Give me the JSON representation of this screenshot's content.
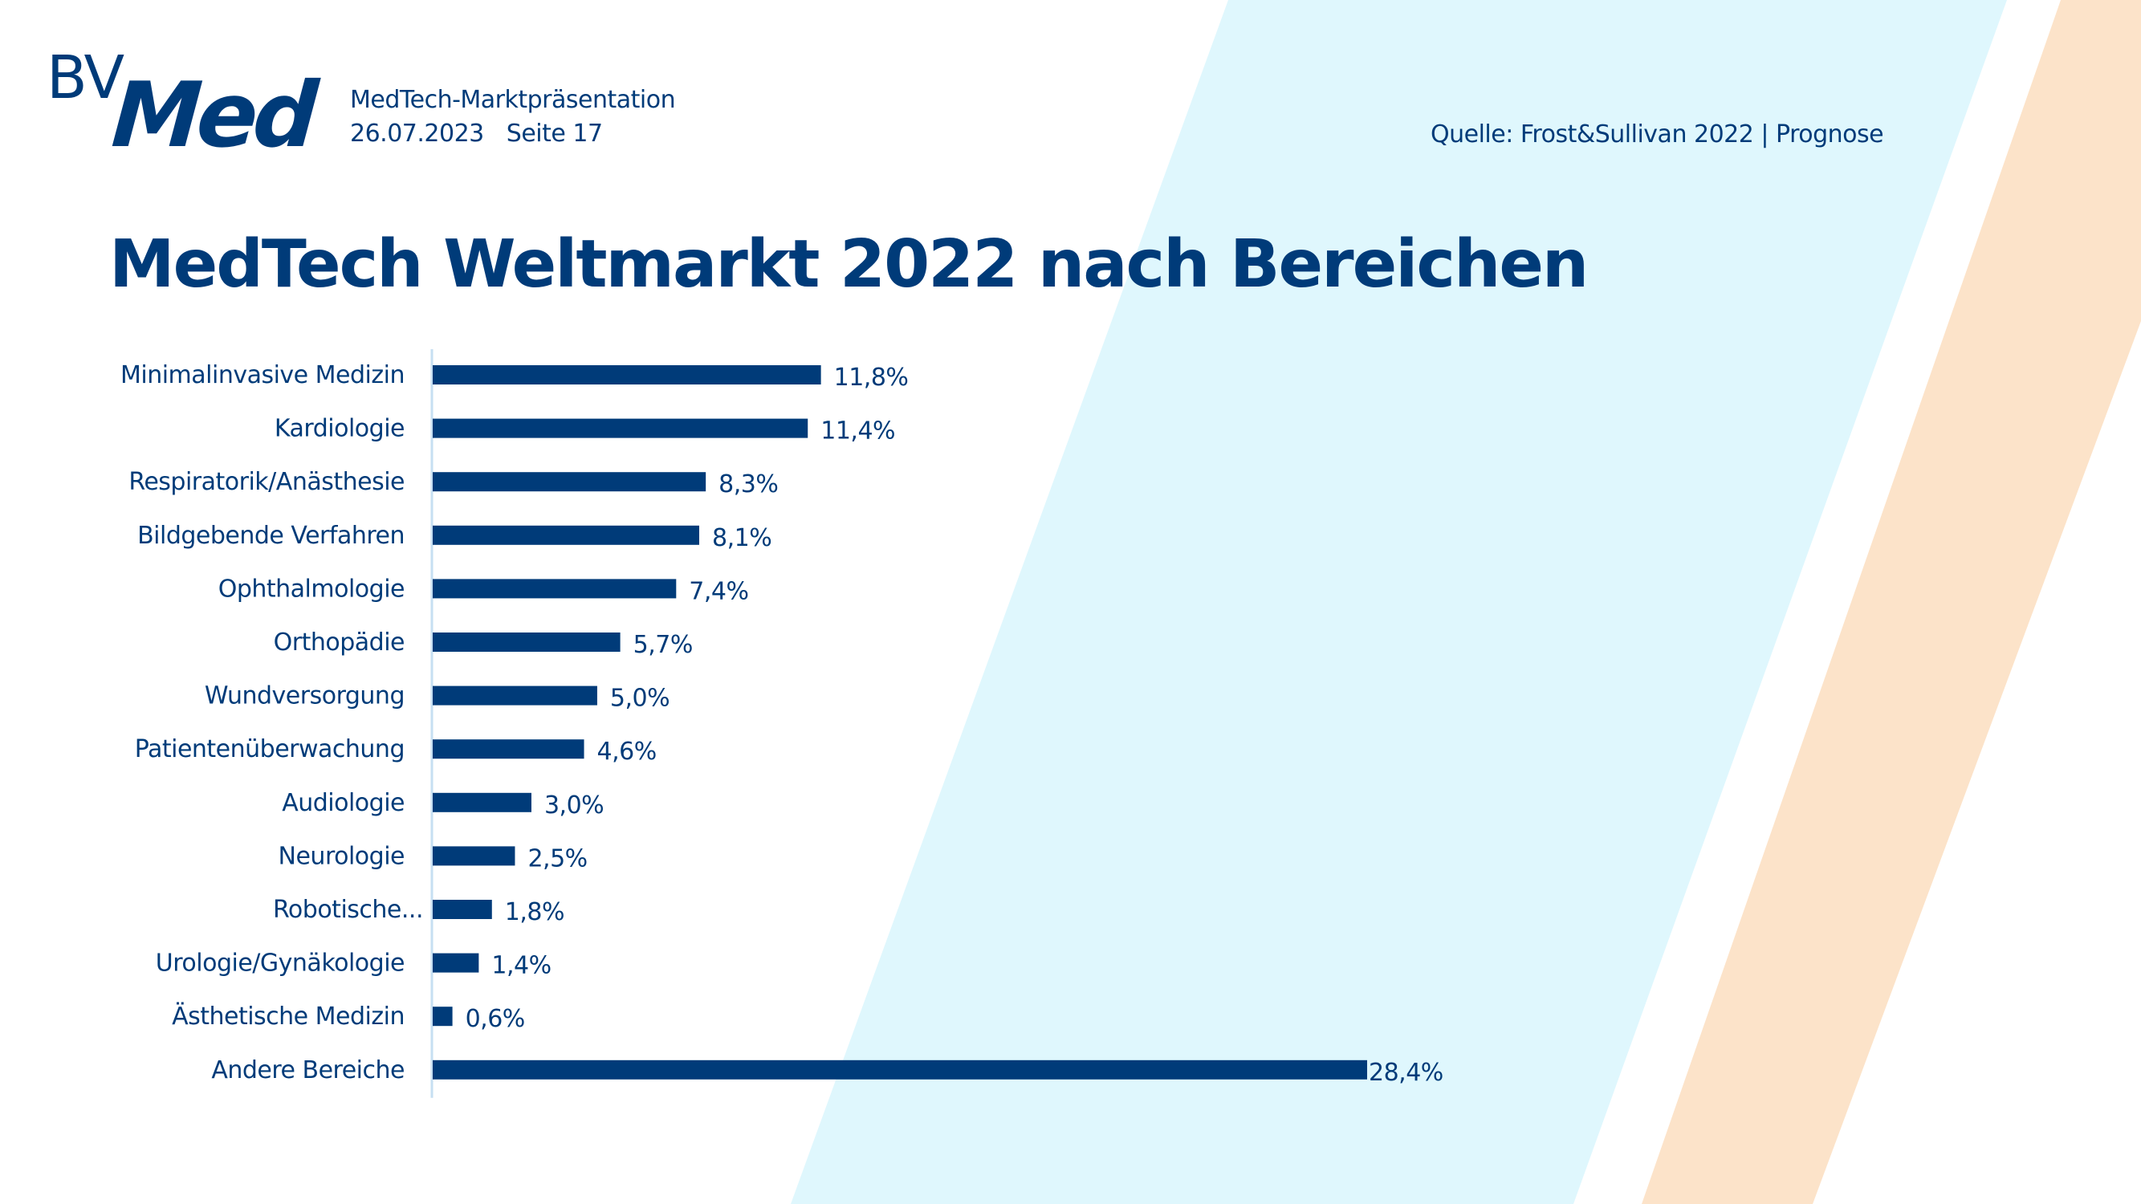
{
  "header": {
    "logo": {
      "prefix": "BV",
      "main": "Med"
    },
    "presentation_title": "MedTech-Marktpräsentation",
    "date": "26.07.2023",
    "page": "Seite 17",
    "source": "Quelle: Frost&Sullivan 2022 | Prognose"
  },
  "colors": {
    "brand_blue": "#003b79",
    "stripe_light_blue": "#dff7fd",
    "stripe_peach": "#fce3c9",
    "axis_line": "#c6dff2"
  },
  "chart_data": {
    "type": "bar",
    "orientation": "horizontal",
    "title": "MedTech Weltmarkt 2022 nach Bereichen",
    "xlabel": "",
    "ylabel": "",
    "unit": "%",
    "xlim": [
      0,
      28.4
    ],
    "grid": false,
    "legend": "none",
    "categories": [
      "Minimalinvasive Medizin",
      "Kardiologie",
      "Respiratorik/Anästhesie",
      "Bildgebende Verfahren",
      "Ophthalmologie",
      "Orthopädie",
      "Wundversorgung",
      "Patientenüberwachung",
      "Audiologie",
      "Neurologie",
      "Robotische...",
      "Urologie/Gynäkologie",
      "Ästhetische Medizin",
      "Andere Bereiche"
    ],
    "values": [
      11.8,
      11.4,
      8.3,
      8.1,
      7.4,
      5.7,
      5.0,
      4.6,
      3.0,
      2.5,
      1.8,
      1.4,
      0.6,
      28.4
    ],
    "data_labels": [
      "11,8%",
      "11,4%",
      "8,3%",
      "8,1%",
      "7,4%",
      "5,7%",
      "5,0%",
      "4,6%",
      "3,0%",
      "2,5%",
      "1,8%",
      "1,4%",
      "0,6%",
      "28,4%"
    ]
  }
}
